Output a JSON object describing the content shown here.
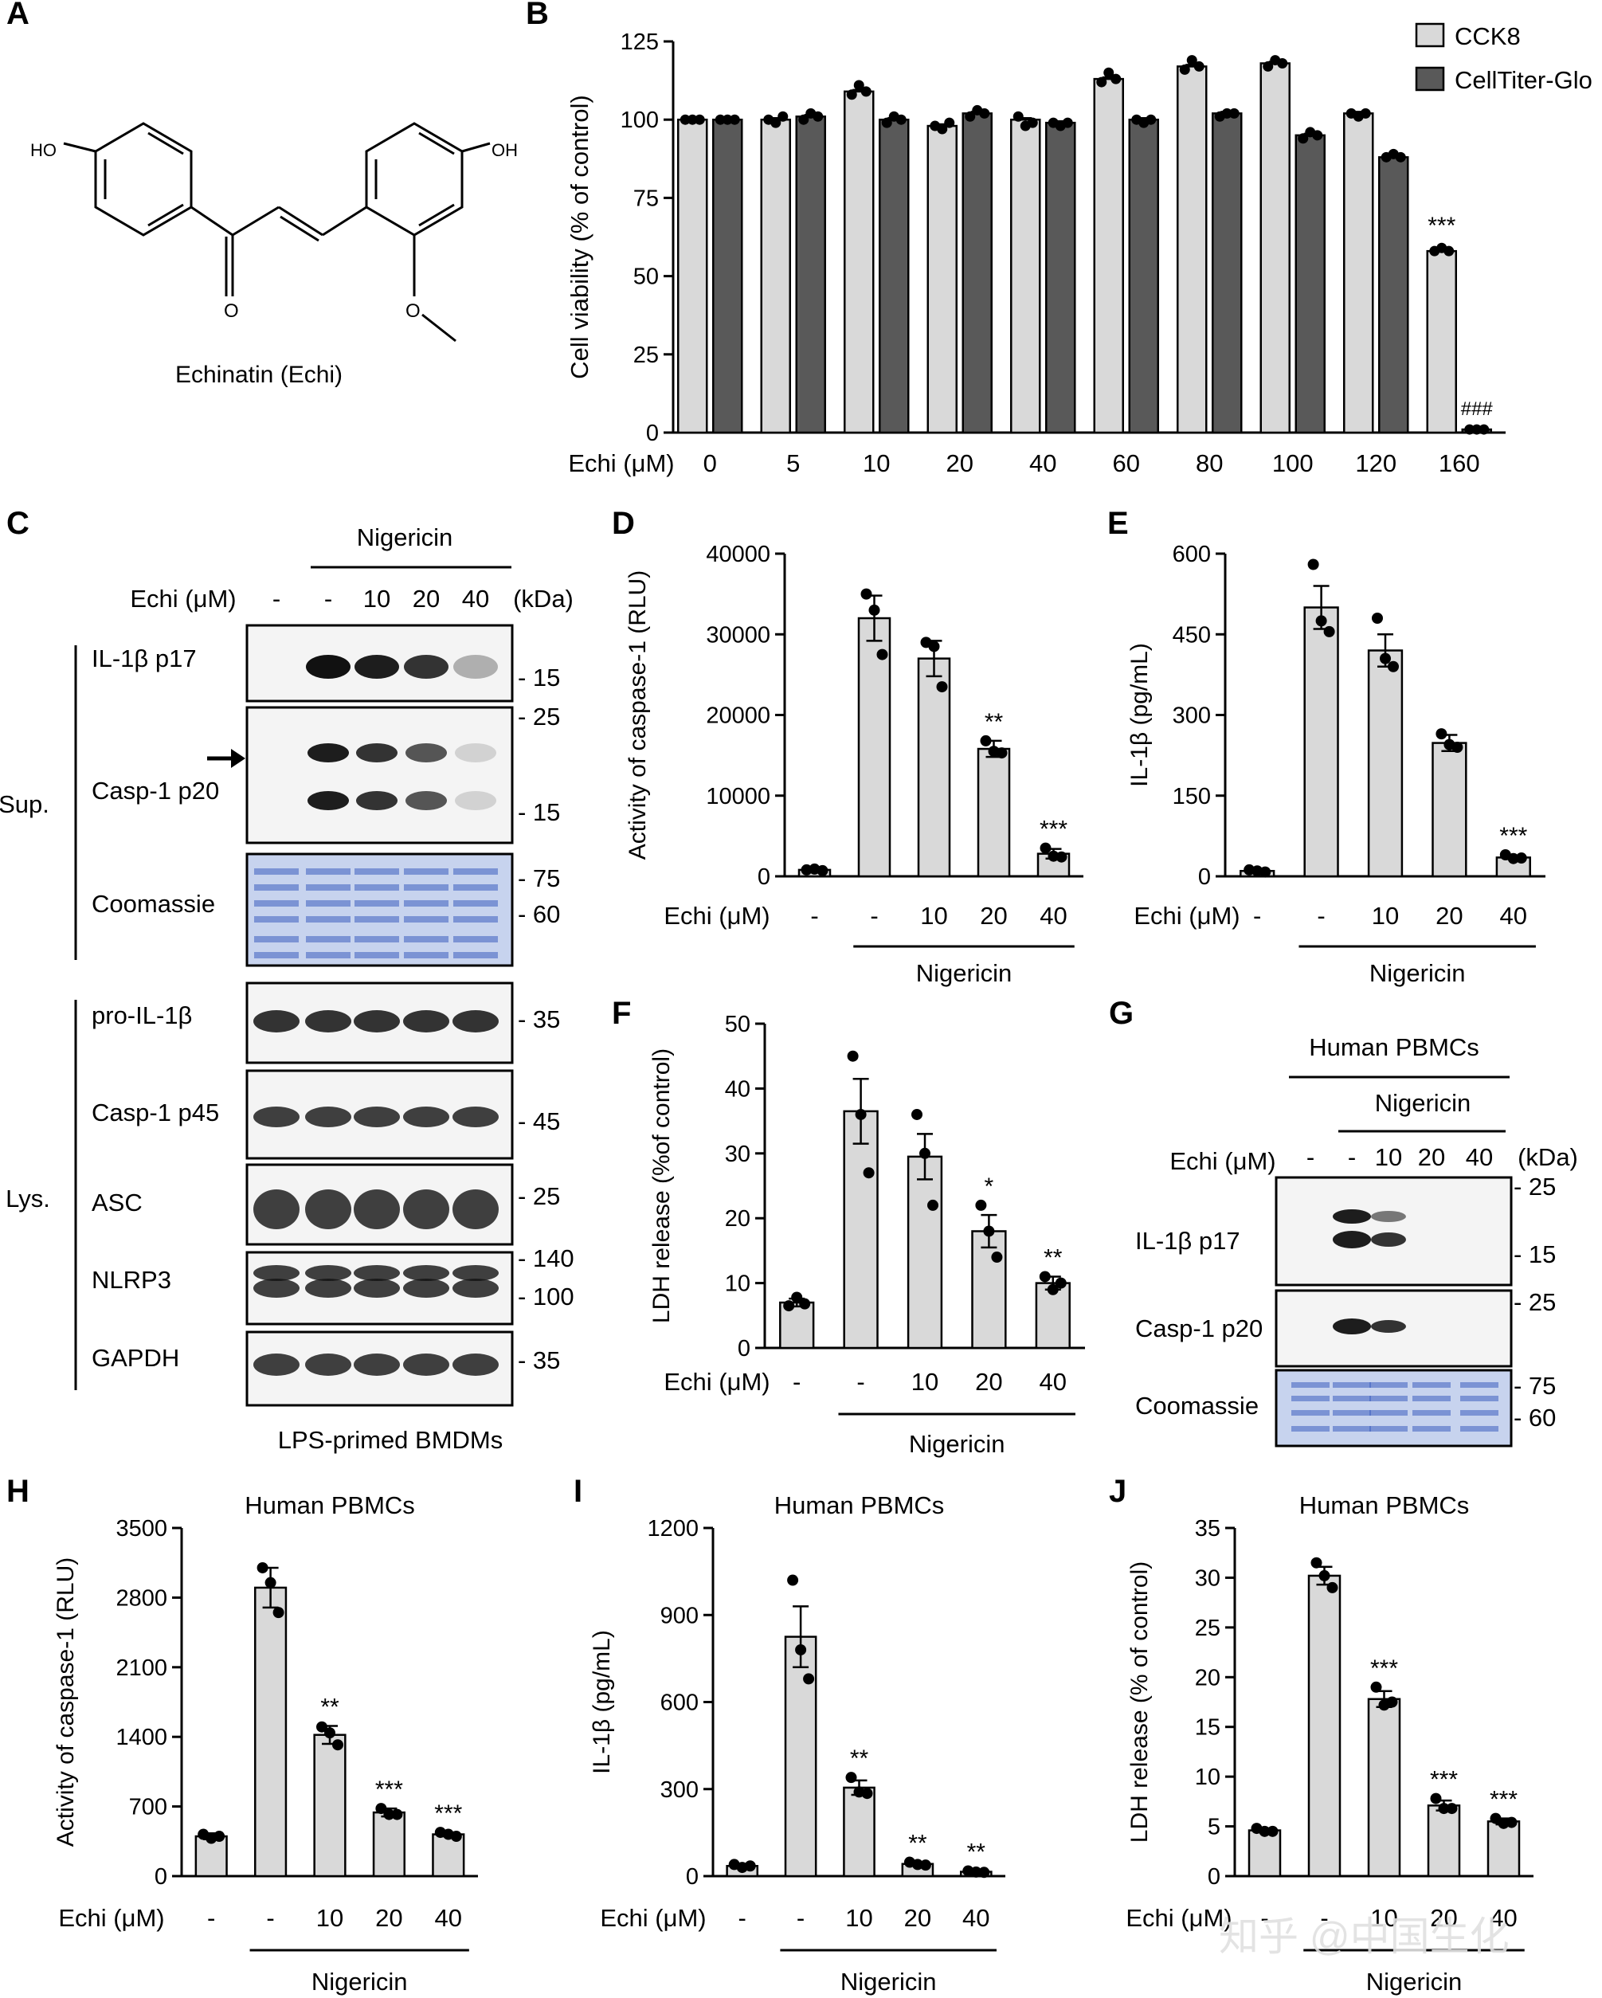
{
  "panel_letters": [
    "A",
    "B",
    "C",
    "D",
    "E",
    "F",
    "G",
    "H",
    "I",
    "J"
  ],
  "panel_a": {
    "caption": "Echinatin (Echi)",
    "atoms": {
      "ho_left": "HO",
      "oh_right": "OH",
      "carbonyl_o": "O",
      "ether_o": "O"
    }
  },
  "common": {
    "echi_label": "Echi (μM)",
    "nigericin": "Nigericin",
    "kda": "(kDa)",
    "human_pbmcs": "Human PBMCs"
  },
  "panel_c": {
    "header_doses": [
      "-",
      "-",
      "10",
      "20",
      "40"
    ],
    "groups": {
      "sup": "Sup.",
      "lys": "Lys."
    },
    "footer": "LPS-primed BMDMs",
    "rows": [
      {
        "label": "IL-1β p17",
        "markers": [
          "15"
        ]
      },
      {
        "label": "Casp-1 p20",
        "markers": [
          "25",
          "15"
        ]
      },
      {
        "label": "Coomassie",
        "markers": [
          "75",
          "60"
        ]
      },
      {
        "label": "pro-IL-1β",
        "markers": [
          "35"
        ]
      },
      {
        "label": "Casp-1 p45",
        "markers": [
          "45"
        ]
      },
      {
        "label": "ASC",
        "markers": [
          "25"
        ]
      },
      {
        "label": "NLRP3",
        "markers": [
          "140",
          "100"
        ]
      },
      {
        "label": "GAPDH",
        "markers": [
          "35"
        ]
      }
    ]
  },
  "panel_g": {
    "header_doses": [
      "-",
      "-",
      "10",
      "20",
      "40"
    ],
    "rows": [
      {
        "label": "IL-1β p17",
        "markers": [
          "25",
          "15"
        ]
      },
      {
        "label": "Casp-1 p20",
        "markers": [
          "25"
        ]
      },
      {
        "label": "Coomassie",
        "markers": [
          "75",
          "60"
        ]
      }
    ]
  },
  "chart_data": [
    {
      "panel": "B",
      "type": "bar",
      "categories": [
        "0",
        "5",
        "10",
        "20",
        "40",
        "60",
        "80",
        "100",
        "120",
        "160"
      ],
      "ylabel": "Cell viability (% of control)",
      "ylim": [
        0,
        125
      ],
      "yticks": [
        0,
        25,
        50,
        75,
        100,
        125
      ],
      "legend_position": "top-right",
      "series": [
        {
          "name": "CCK8",
          "color": "#d9d9d9",
          "values": [
            100,
            100,
            109,
            98,
            100,
            113,
            117,
            118,
            102,
            58
          ],
          "points": [
            [
              100,
              100,
              100
            ],
            [
              100,
              99,
              101
            ],
            [
              108,
              111,
              109
            ],
            [
              98,
              97,
              99
            ],
            [
              101,
              98,
              99
            ],
            [
              112,
              115,
              113
            ],
            [
              116,
              119,
              117
            ],
            [
              117,
              119,
              118
            ],
            [
              102,
              101,
              102
            ],
            [
              58,
              59,
              58
            ]
          ],
          "annotations": [
            "",
            "",
            "",
            "",
            "",
            "",
            "",
            "",
            "",
            "***"
          ]
        },
        {
          "name": "CellTiter-Glo",
          "color": "#595959",
          "values": [
            100,
            101,
            100,
            102,
            99,
            100,
            102,
            95,
            88,
            1
          ],
          "points": [
            [
              100,
              100,
              100
            ],
            [
              100,
              102,
              101
            ],
            [
              99,
              101,
              100
            ],
            [
              101,
              103,
              102
            ],
            [
              99,
              98,
              99
            ],
            [
              100,
              99,
              100
            ],
            [
              101,
              102,
              102
            ],
            [
              94,
              96,
              95
            ],
            [
              88,
              89,
              88
            ],
            [
              1,
              1,
              1
            ]
          ],
          "annotations": [
            "",
            "",
            "",
            "",
            "",
            "",
            "",
            "",
            "",
            "###"
          ]
        }
      ]
    },
    {
      "panel": "D",
      "type": "bar",
      "categories": [
        "-",
        "-",
        "10",
        "20",
        "40"
      ],
      "ylabel": "Activity of caspase-1 (RLU)",
      "ylim": [
        0,
        40000
      ],
      "yticks": [
        0,
        10000,
        20000,
        30000,
        40000
      ],
      "values": [
        800,
        32000,
        27000,
        15800,
        2800
      ],
      "errors": [
        200,
        2800,
        2200,
        1000,
        600
      ],
      "points": [
        [
          800,
          900,
          700
        ],
        [
          35000,
          33000,
          27500
        ],
        [
          29000,
          28500,
          23500
        ],
        [
          16800,
          15500,
          15300
        ],
        [
          3500,
          2500,
          2400
        ]
      ],
      "annotations": [
        "",
        "",
        "",
        "**",
        "***"
      ]
    },
    {
      "panel": "E",
      "type": "bar",
      "categories": [
        "-",
        "-",
        "10",
        "20",
        "40"
      ],
      "ylabel": "IL-1β (pg/mL)",
      "ylim": [
        0,
        600
      ],
      "yticks": [
        0,
        150,
        300,
        450,
        600
      ],
      "values": [
        10,
        500,
        420,
        248,
        35
      ],
      "errors": [
        3,
        40,
        30,
        15,
        3
      ],
      "points": [
        [
          12,
          10,
          8
        ],
        [
          580,
          475,
          455
        ],
        [
          480,
          405,
          390
        ],
        [
          265,
          245,
          240
        ],
        [
          40,
          33,
          34
        ]
      ],
      "annotations": [
        "",
        "",
        "",
        "",
        "***"
      ]
    },
    {
      "panel": "F",
      "type": "bar",
      "categories": [
        "-",
        "-",
        "10",
        "20",
        "40"
      ],
      "ylabel": "LDH release (%of control)",
      "ylim": [
        0,
        50
      ],
      "yticks": [
        0,
        10,
        20,
        30,
        40,
        50
      ],
      "values": [
        7,
        36.5,
        29.5,
        18,
        10
      ],
      "errors": [
        0.6,
        5,
        3.5,
        2.5,
        1
      ],
      "points": [
        [
          6.5,
          7.8,
          6.8
        ],
        [
          45,
          36,
          27
        ],
        [
          36,
          30,
          22
        ],
        [
          22,
          18,
          14
        ],
        [
          11,
          9,
          10
        ]
      ],
      "annotations": [
        "",
        "",
        "",
        "*",
        "**"
      ]
    },
    {
      "panel": "H",
      "type": "bar",
      "title": "Human PBMCs",
      "categories": [
        "-",
        "-",
        "10",
        "20",
        "40"
      ],
      "ylabel": "Activity of caspase-1 (RLU)",
      "ylim": [
        0,
        3500
      ],
      "yticks": [
        0,
        700,
        1400,
        2100,
        2800,
        3500
      ],
      "values": [
        400,
        2900,
        1420,
        640,
        420
      ],
      "errors": [
        30,
        200,
        90,
        40,
        20
      ],
      "points": [
        [
          420,
          380,
          400
        ],
        [
          3100,
          2950,
          2650
        ],
        [
          1500,
          1440,
          1320
        ],
        [
          680,
          620,
          620
        ],
        [
          440,
          420,
          400
        ]
      ],
      "annotations": [
        "",
        "",
        "**",
        "***",
        "***"
      ]
    },
    {
      "panel": "I",
      "type": "bar",
      "title": "Human PBMCs",
      "categories": [
        "-",
        "-",
        "10",
        "20",
        "40"
      ],
      "ylabel": "IL-1β (pg/mL)",
      "ylim": [
        0,
        1200
      ],
      "yticks": [
        0,
        300,
        600,
        900,
        1200
      ],
      "values": [
        35,
        825,
        305,
        42,
        15
      ],
      "errors": [
        5,
        105,
        25,
        5,
        3
      ],
      "points": [
        [
          40,
          30,
          35
        ],
        [
          1020,
          780,
          680
        ],
        [
          340,
          290,
          285
        ],
        [
          48,
          40,
          38
        ],
        [
          18,
          14,
          13
        ]
      ],
      "annotations": [
        "",
        "",
        "**",
        "**",
        "**"
      ]
    },
    {
      "panel": "J",
      "type": "bar",
      "title": "Human PBMCs",
      "categories": [
        "-",
        "-",
        "10",
        "20",
        "40"
      ],
      "ylabel": "LDH release (% of control)",
      "ylim": [
        0,
        35
      ],
      "yticks": [
        0,
        5,
        10,
        15,
        20,
        25,
        30,
        35
      ],
      "values": [
        4.6,
        30.2,
        17.8,
        7.1,
        5.5
      ],
      "errors": [
        0.2,
        0.9,
        0.8,
        0.5,
        0.3
      ],
      "points": [
        [
          4.8,
          4.5,
          4.5
        ],
        [
          31.5,
          30.2,
          29
        ],
        [
          19,
          17.2,
          17.5
        ],
        [
          7.8,
          6.8,
          6.8
        ],
        [
          5.8,
          5.3,
          5.4
        ]
      ],
      "annotations": [
        "",
        "",
        "***",
        "***",
        "***"
      ]
    }
  ],
  "watermark": "知乎 @中国生化"
}
